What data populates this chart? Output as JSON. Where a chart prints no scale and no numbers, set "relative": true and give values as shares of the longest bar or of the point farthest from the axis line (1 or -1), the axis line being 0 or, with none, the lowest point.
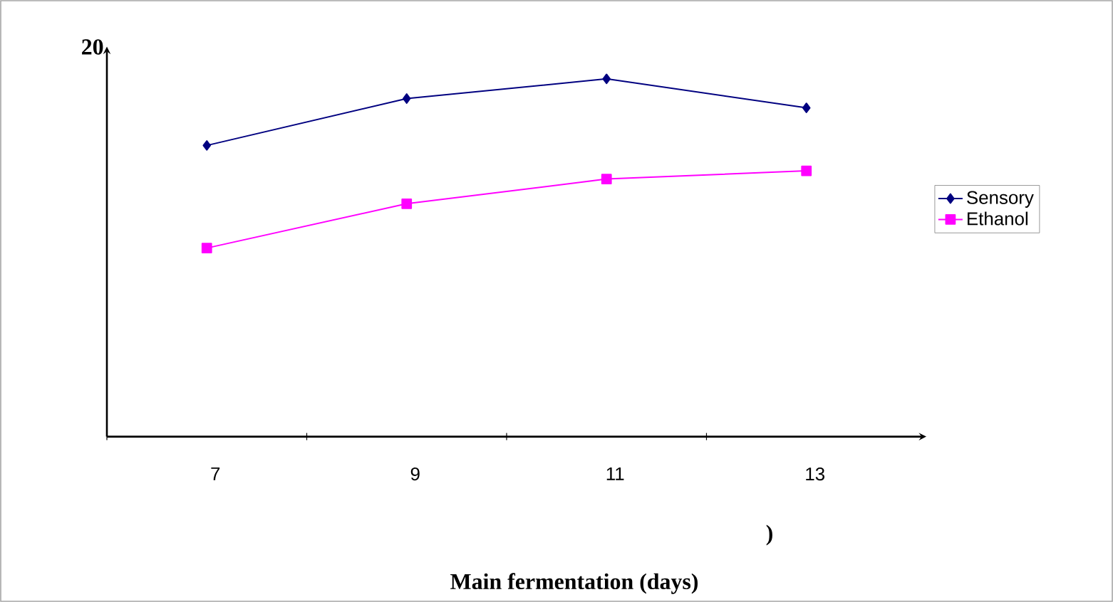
{
  "chart_data": {
    "type": "line",
    "relative": true,
    "xlabel": "Main fermentation (days)",
    "categories": [
      "7",
      "9",
      "11",
      "13"
    ],
    "series": [
      {
        "name": "Sensory",
        "color": "#000080",
        "marker": "diamond",
        "values": [
          0.814,
          0.945,
          1,
          0.919
        ]
      },
      {
        "name": "Ethanol",
        "color": "#ff00ff",
        "marker": "square",
        "values": [
          0.527,
          0.651,
          0.72,
          0.743
        ]
      }
    ],
    "annotations": [
      "20",
      ")"
    ],
    "legend": "right"
  }
}
